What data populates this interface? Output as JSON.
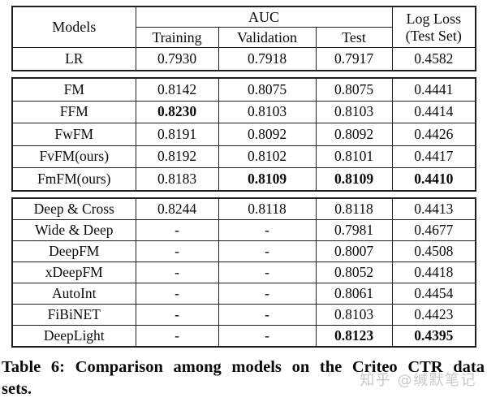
{
  "header": {
    "models": "Models",
    "auc": "AUC",
    "training": "Training",
    "validation": "Validation",
    "test": "Test",
    "logloss_line1": "Log Loss",
    "logloss_line2": "(Test Set)"
  },
  "groups": [
    {
      "rows": [
        {
          "model": "LR",
          "training": "0.7930",
          "validation": "0.7918",
          "test": "0.7917",
          "logloss": "0.4582"
        }
      ]
    },
    {
      "rows": [
        {
          "model": "FM",
          "training": "0.8142",
          "validation": "0.8075",
          "test": "0.8075",
          "logloss": "0.4441"
        },
        {
          "model": "FFM",
          "training": "0.8230",
          "validation": "0.8103",
          "test": "0.8103",
          "logloss": "0.4414"
        },
        {
          "model": "FwFM",
          "training": "0.8191",
          "validation": "0.8092",
          "test": "0.8092",
          "logloss": "0.4426"
        },
        {
          "model": "FvFM(ours)",
          "training": "0.8192",
          "validation": "0.8102",
          "test": "0.8101",
          "logloss": "0.4417"
        },
        {
          "model": "FmFM(ours)",
          "training": "0.8183",
          "validation": "0.8109",
          "test": "0.8109",
          "logloss": "0.4410"
        }
      ]
    },
    {
      "rows": [
        {
          "model": "Deep & Cross",
          "training": "0.8244",
          "validation": "0.8118",
          "test": "0.8118",
          "logloss": "0.4413"
        },
        {
          "model": "Wide & Deep",
          "training": "-",
          "validation": "-",
          "test": "0.7981",
          "logloss": "0.4677"
        },
        {
          "model": "DeepFM",
          "training": "-",
          "validation": "-",
          "test": "0.8007",
          "logloss": "0.4508"
        },
        {
          "model": "xDeepFM",
          "training": "-",
          "validation": "-",
          "test": "0.8052",
          "logloss": "0.4418"
        },
        {
          "model": "AutoInt",
          "training": "-",
          "validation": "-",
          "test": "0.8061",
          "logloss": "0.4454"
        },
        {
          "model": "FiBiNET",
          "training": "-",
          "validation": "-",
          "test": "0.8103",
          "logloss": "0.4423"
        },
        {
          "model": "DeepLight",
          "training": "-",
          "validation": "-",
          "test": "0.8123",
          "logloss": "0.4395"
        }
      ]
    }
  ],
  "caption": {
    "line1": "Table 6: Comparison among models on the Criteo CTR data",
    "line2": "sets."
  },
  "watermark": "知乎 @缄默笔记",
  "colors": {
    "border": "#1f1f1f",
    "text": "#0a0a0a",
    "watermark": "#c9c9c9"
  }
}
